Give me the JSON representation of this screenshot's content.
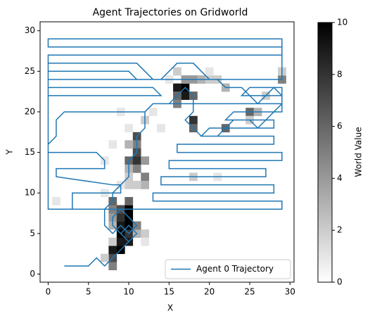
{
  "chart_data": {
    "type": "heatmap",
    "title": "Agent Trajectories on Gridworld",
    "xlabel": "X",
    "ylabel": "Y",
    "xlim": [
      -1,
      30.5
    ],
    "ylim": [
      -1,
      31.1
    ],
    "xticks": [
      0,
      5,
      10,
      15,
      20,
      25,
      30
    ],
    "yticks": [
      0,
      5,
      10,
      15,
      20,
      25,
      30
    ],
    "colorbar_label": "World Value",
    "clim": [
      0,
      10
    ],
    "cticks": [
      0,
      2,
      4,
      6,
      8,
      10
    ],
    "colormap": "Greys",
    "legend": "lower right",
    "cells": [
      {
        "x": 8,
        "y": 1,
        "value": 5
      },
      {
        "x": 8,
        "y": 2,
        "value": 7
      },
      {
        "x": 7,
        "y": 2,
        "value": 2
      },
      {
        "x": 8,
        "y": 3,
        "value": 9
      },
      {
        "x": 9,
        "y": 3,
        "value": 10
      },
      {
        "x": 8,
        "y": 4,
        "value": 2
      },
      {
        "x": 9,
        "y": 4,
        "value": 9
      },
      {
        "x": 10,
        "y": 4,
        "value": 9
      },
      {
        "x": 9,
        "y": 5,
        "value": 10
      },
      {
        "x": 10,
        "y": 5,
        "value": 8
      },
      {
        "x": 11,
        "y": 5,
        "value": 3
      },
      {
        "x": 12,
        "y": 5,
        "value": 2
      },
      {
        "x": 12,
        "y": 4,
        "value": 1
      },
      {
        "x": 8,
        "y": 6,
        "value": 3
      },
      {
        "x": 9,
        "y": 6,
        "value": 9
      },
      {
        "x": 10,
        "y": 6,
        "value": 10
      },
      {
        "x": 11,
        "y": 6,
        "value": 5
      },
      {
        "x": 8,
        "y": 7,
        "value": 4
      },
      {
        "x": 9,
        "y": 7,
        "value": 8
      },
      {
        "x": 10,
        "y": 7,
        "value": 10
      },
      {
        "x": 8,
        "y": 8,
        "value": 5
      },
      {
        "x": 9,
        "y": 8,
        "value": 7
      },
      {
        "x": 10,
        "y": 8,
        "value": 10
      },
      {
        "x": 8,
        "y": 9,
        "value": 6
      },
      {
        "x": 10,
        "y": 9,
        "value": 6
      },
      {
        "x": 17,
        "y": 23,
        "value": 10
      },
      {
        "x": 16,
        "y": 23,
        "value": 9
      },
      {
        "x": 17,
        "y": 22,
        "value": 9
      },
      {
        "x": 16,
        "y": 22,
        "value": 6
      },
      {
        "x": 18,
        "y": 22,
        "value": 6
      },
      {
        "x": 17,
        "y": 24,
        "value": 4
      },
      {
        "x": 18,
        "y": 24,
        "value": 4
      },
      {
        "x": 19,
        "y": 24,
        "value": 3
      },
      {
        "x": 20,
        "y": 24,
        "value": 2
      },
      {
        "x": 16,
        "y": 21,
        "value": 5
      },
      {
        "x": 18,
        "y": 19,
        "value": 8
      },
      {
        "x": 18,
        "y": 18,
        "value": 6
      },
      {
        "x": 22,
        "y": 18,
        "value": 6
      },
      {
        "x": 25,
        "y": 20,
        "value": 6
      },
      {
        "x": 29,
        "y": 24,
        "value": 5
      },
      {
        "x": 29,
        "y": 25,
        "value": 2
      },
      {
        "x": 22,
        "y": 23,
        "value": 3
      },
      {
        "x": 21,
        "y": 24,
        "value": 2
      },
      {
        "x": 15,
        "y": 24,
        "value": 1
      },
      {
        "x": 16,
        "y": 25,
        "value": 2
      },
      {
        "x": 20,
        "y": 25,
        "value": 1
      },
      {
        "x": 26,
        "y": 20,
        "value": 3
      },
      {
        "x": 11,
        "y": 17,
        "value": 7
      },
      {
        "x": 11,
        "y": 16,
        "value": 5
      },
      {
        "x": 10,
        "y": 16,
        "value": 3
      },
      {
        "x": 11,
        "y": 15,
        "value": 7
      },
      {
        "x": 10,
        "y": 14,
        "value": 6
      },
      {
        "x": 11,
        "y": 14,
        "value": 8
      },
      {
        "x": 12,
        "y": 14,
        "value": 4
      },
      {
        "x": 11,
        "y": 13,
        "value": 5
      },
      {
        "x": 10,
        "y": 13,
        "value": 3
      },
      {
        "x": 12,
        "y": 12,
        "value": 5
      },
      {
        "x": 12,
        "y": 11,
        "value": 3
      },
      {
        "x": 11,
        "y": 11,
        "value": 2
      },
      {
        "x": 10,
        "y": 12,
        "value": 2
      },
      {
        "x": 10,
        "y": 11,
        "value": 2
      },
      {
        "x": 9,
        "y": 11,
        "value": 1
      },
      {
        "x": 12,
        "y": 19,
        "value": 2
      },
      {
        "x": 13,
        "y": 20,
        "value": 1
      },
      {
        "x": 14,
        "y": 18,
        "value": 1
      },
      {
        "x": 7,
        "y": 14,
        "value": 1
      },
      {
        "x": 8,
        "y": 16,
        "value": 1
      },
      {
        "x": 7,
        "y": 10,
        "value": 1
      },
      {
        "x": 1,
        "y": 9,
        "value": 1
      },
      {
        "x": 18,
        "y": 12,
        "value": 2
      },
      {
        "x": 21,
        "y": 12,
        "value": 1
      },
      {
        "x": 25,
        "y": 19,
        "value": 2
      },
      {
        "x": 27,
        "y": 22,
        "value": 2
      },
      {
        "x": 9,
        "y": 20,
        "value": 1
      },
      {
        "x": 10,
        "y": 18,
        "value": 1
      }
    ],
    "series": [
      {
        "name": "Agent 0 Trajectory",
        "color": "#1f77b4",
        "x": [
          2,
          5,
          6,
          7,
          8,
          9,
          10,
          9,
          10,
          11,
          10,
          9,
          8,
          8,
          9,
          10,
          11,
          10,
          9,
          8,
          7,
          7,
          8,
          8,
          9,
          10,
          10,
          11,
          11,
          12,
          12,
          13,
          15,
          16,
          17,
          18,
          18,
          17,
          18,
          19,
          21,
          22,
          23,
          25,
          26,
          27,
          28,
          29,
          29,
          28,
          27,
          26,
          25,
          24,
          22,
          21,
          20,
          19,
          18,
          16,
          15,
          14,
          13,
          12,
          11,
          0,
          0,
          10,
          11,
          0,
          0,
          13,
          14,
          0,
          0,
          29,
          29,
          0,
          0,
          29,
          29,
          0,
          0,
          29,
          29,
          13,
          13,
          28,
          28,
          14,
          14,
          27,
          27,
          15,
          15,
          29,
          29,
          16,
          16,
          28,
          28,
          19,
          20,
          28,
          28,
          22,
          23,
          29,
          29,
          24,
          25,
          29,
          29,
          13,
          12,
          2,
          1,
          1,
          0,
          0,
          6,
          7,
          7,
          1,
          1,
          8,
          9,
          9,
          3,
          3,
          10
        ],
        "y": [
          1,
          1,
          2,
          1,
          2,
          3,
          4,
          5,
          6,
          5,
          4,
          5,
          6,
          7,
          8,
          7,
          6,
          5,
          6,
          5,
          6,
          8,
          9,
          10,
          11,
          12,
          14,
          15,
          17,
          18,
          20,
          21,
          21,
          22,
          23,
          22,
          20,
          19,
          18,
          17,
          17,
          18,
          19,
          19,
          18,
          19,
          20,
          21,
          22,
          23,
          22,
          21,
          22,
          23,
          23,
          24,
          24,
          25,
          26,
          26,
          25,
          24,
          24,
          25,
          26,
          26,
          25,
          25,
          24,
          24,
          23,
          23,
          22,
          22,
          27,
          27,
          28,
          28,
          29,
          29,
          24,
          24,
          8,
          8,
          9,
          9,
          10,
          10,
          11,
          11,
          12,
          12,
          13,
          13,
          14,
          14,
          15,
          15,
          16,
          16,
          17,
          17,
          18,
          18,
          19,
          19,
          20,
          20,
          22,
          22,
          23,
          23,
          21,
          21,
          20,
          20,
          19,
          17,
          16,
          15,
          15,
          14,
          13,
          13,
          12,
          11,
          11,
          10,
          10,
          8,
          8
        ]
      }
    ]
  }
}
